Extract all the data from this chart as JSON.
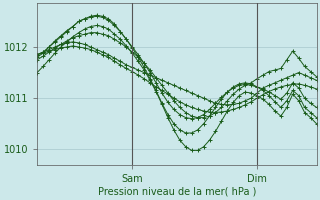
{
  "background_color": "#cce8ea",
  "grid_color": "#a8c8cc",
  "line_color": "#1a5c1a",
  "marker": "+",
  "xlabel": "Pression niveau de la mer( hPa )",
  "yticks": [
    1010,
    1011,
    1012
  ],
  "ylim": [
    1009.7,
    1012.85
  ],
  "xlim": [
    0,
    47
  ],
  "sam_x": 16,
  "dim_x": 37,
  "series": [
    [
      1011.85,
      1011.9,
      1011.95,
      1012.0,
      1012.05,
      1012.08,
      1012.1,
      1012.08,
      1012.05,
      1012.0,
      1011.95,
      1011.9,
      1011.85,
      1011.78,
      1011.72,
      1011.65,
      1011.6,
      1011.55,
      1011.5,
      1011.45,
      1011.4,
      1011.35,
      1011.3,
      1011.25,
      1011.2,
      1011.15,
      1011.1,
      1011.05,
      1011.0,
      1010.95,
      1010.9,
      1010.88,
      1010.87,
      1010.88,
      1010.9,
      1010.95,
      1011.0,
      1011.1,
      1011.2,
      1011.25,
      1011.3,
      1011.35,
      1011.4,
      1011.45,
      1011.5,
      1011.45,
      1011.4,
      1011.35
    ],
    [
      1011.85,
      1011.88,
      1011.92,
      1011.95,
      1011.98,
      1012.0,
      1012.02,
      1012.0,
      1011.98,
      1011.95,
      1011.9,
      1011.85,
      1011.8,
      1011.72,
      1011.65,
      1011.58,
      1011.52,
      1011.45,
      1011.38,
      1011.3,
      1011.22,
      1011.15,
      1011.08,
      1011.0,
      1010.93,
      1010.87,
      1010.82,
      1010.78,
      1010.75,
      1010.73,
      1010.72,
      1010.73,
      1010.75,
      1010.78,
      1010.82,
      1010.87,
      1010.93,
      1011.0,
      1011.07,
      1011.13,
      1011.18,
      1011.22,
      1011.25,
      1011.27,
      1011.28,
      1011.25,
      1011.22,
      1011.18
    ],
    [
      1011.85,
      1011.9,
      1012.0,
      1012.1,
      1012.2,
      1012.3,
      1012.4,
      1012.5,
      1012.55,
      1012.6,
      1012.62,
      1012.6,
      1012.55,
      1012.45,
      1012.3,
      1012.15,
      1012.0,
      1011.85,
      1011.68,
      1011.5,
      1011.3,
      1011.1,
      1010.92,
      1010.78,
      1010.68,
      1010.62,
      1010.6,
      1010.62,
      1010.68,
      1010.78,
      1010.9,
      1011.02,
      1011.12,
      1011.2,
      1011.25,
      1011.27,
      1011.25,
      1011.22,
      1011.18,
      1011.12,
      1011.05,
      1010.98,
      1011.1,
      1011.3,
      1011.2,
      1011.0,
      1010.9,
      1010.82
    ],
    [
      1011.8,
      1011.88,
      1012.0,
      1012.12,
      1012.22,
      1012.32,
      1012.4,
      1012.5,
      1012.55,
      1012.58,
      1012.6,
      1012.58,
      1012.52,
      1012.42,
      1012.3,
      1012.15,
      1011.98,
      1011.8,
      1011.6,
      1011.38,
      1011.15,
      1010.9,
      1010.68,
      1010.5,
      1010.38,
      1010.32,
      1010.32,
      1010.38,
      1010.5,
      1010.65,
      1010.82,
      1010.98,
      1011.12,
      1011.22,
      1011.28,
      1011.3,
      1011.28,
      1011.22,
      1011.15,
      1011.05,
      1010.93,
      1010.82,
      1010.95,
      1011.15,
      1011.05,
      1010.82,
      1010.72,
      1010.62
    ],
    [
      1011.5,
      1011.62,
      1011.75,
      1011.88,
      1012.0,
      1012.1,
      1012.2,
      1012.28,
      1012.35,
      1012.4,
      1012.42,
      1012.4,
      1012.35,
      1012.25,
      1012.15,
      1012.02,
      1011.88,
      1011.72,
      1011.55,
      1011.35,
      1011.13,
      1010.88,
      1010.62,
      1010.38,
      1010.18,
      1010.05,
      1009.98,
      1009.98,
      1010.05,
      1010.18,
      1010.35,
      1010.55,
      1010.75,
      1010.92,
      1011.05,
      1011.12,
      1011.1,
      1011.05,
      1010.98,
      1010.88,
      1010.75,
      1010.65,
      1010.82,
      1011.08,
      1010.95,
      1010.72,
      1010.62,
      1010.5
    ],
    [
      1011.75,
      1011.82,
      1011.9,
      1011.98,
      1012.05,
      1012.12,
      1012.18,
      1012.22,
      1012.25,
      1012.28,
      1012.28,
      1012.25,
      1012.22,
      1012.15,
      1012.08,
      1012.0,
      1011.9,
      1011.8,
      1011.68,
      1011.55,
      1011.4,
      1011.25,
      1011.1,
      1010.95,
      1010.82,
      1010.72,
      1010.65,
      1010.62,
      1010.62,
      1010.65,
      1010.72,
      1010.82,
      1010.95,
      1011.08,
      1011.18,
      1011.25,
      1011.3,
      1011.38,
      1011.45,
      1011.52,
      1011.55,
      1011.58,
      1011.75,
      1011.92,
      1011.78,
      1011.62,
      1011.52,
      1011.42
    ]
  ]
}
